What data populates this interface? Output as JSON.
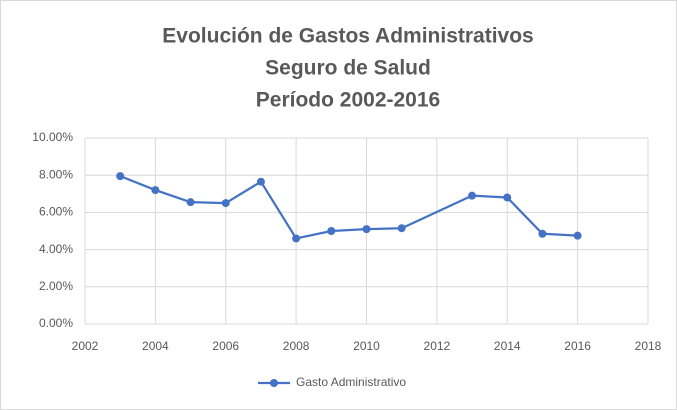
{
  "chart_data": {
    "type": "line",
    "title": [
      "Evolución de Gastos Administrativos",
      "Seguro de Salud",
      "Período 2002-2016"
    ],
    "x": [
      2003,
      2004,
      2005,
      2006,
      2007,
      2008,
      2009,
      2010,
      2011,
      2013,
      2014,
      2015,
      2016
    ],
    "series": [
      {
        "name": "Gasto Administrativo",
        "color": "#4472c4",
        "values": [
          7.95,
          7.2,
          6.55,
          6.5,
          7.65,
          4.6,
          5.0,
          5.1,
          5.15,
          6.9,
          6.8,
          4.85,
          4.75
        ]
      }
    ],
    "xlim": [
      2002,
      2018
    ],
    "xticks": [
      2002,
      2004,
      2006,
      2008,
      2010,
      2012,
      2014,
      2016,
      2018
    ],
    "ylim": [
      0,
      10
    ],
    "yticks": [
      {
        "value": 0,
        "label": "0.00%"
      },
      {
        "value": 2,
        "label": "2.00%"
      },
      {
        "value": 4,
        "label": "4.00%"
      },
      {
        "value": 6,
        "label": "6.00%"
      },
      {
        "value": 8,
        "label": "8.00%"
      },
      {
        "value": 10,
        "label": "10.00%"
      }
    ],
    "grid": true,
    "legend": "bottom"
  }
}
